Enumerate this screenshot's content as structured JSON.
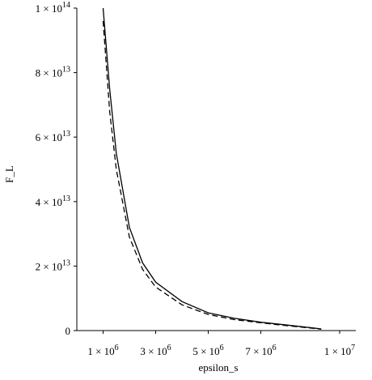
{
  "chart_data": {
    "type": "line",
    "x_label": "epsilon_s",
    "y_label": "F_L",
    "x": [
      1000000.0,
      1250000.0,
      1500000.0,
      2000000.0,
      2500000.0,
      3000000.0,
      4000000.0,
      5000000.0,
      6000000.0,
      7000000.0,
      8000000.0,
      9000000.0,
      9300000.0
    ],
    "series": [
      {
        "color": "#000000",
        "linestyle": "solid",
        "values": [
          100000000000000.0,
          75000000000000.0,
          55000000000000.0,
          32000000000000.0,
          21000000000000.0,
          15000000000000.0,
          9000000000000.0,
          5500000000000.0,
          3800000000000.0,
          2600000000000.0,
          1700000000000.0,
          800000000000.0,
          500000000000.0
        ]
      },
      {
        "color": "#000000",
        "linestyle": "dashed",
        "values": [
          96000000000000.0,
          68000000000000.0,
          50000000000000.0,
          29000000000000.0,
          19000000000000.0,
          13500000000000.0,
          8000000000000.0,
          5000000000000.0,
          3400000000000.0,
          2400000000000.0,
          1500000000000.0,
          700000000000.0,
          400000000000.0
        ]
      }
    ],
    "xlim": [
      0,
      10000000.0
    ],
    "ylim": [
      0,
      100000000000000.0
    ],
    "xticks": [
      {
        "value": 1000000.0,
        "label": "1 × 10^6"
      },
      {
        "value": 3000000.0,
        "label": "3 × 10^6"
      },
      {
        "value": 5000000.0,
        "label": "5 × 10^6"
      },
      {
        "value": 7000000.0,
        "label": "7 × 10^6"
      },
      {
        "value": 10000000.0,
        "label": "1 × 10^7"
      }
    ],
    "yticks": [
      0,
      {
        "value": 20000000000000.0,
        "label": "2 × 10^13"
      },
      {
        "value": 40000000000000.0,
        "label": "4 × 10^13"
      },
      {
        "value": 60000000000000.0,
        "label": "6 × 10^13"
      },
      {
        "value": 80000000000000.0,
        "label": "8 × 10^13"
      },
      {
        "value": 100000000000000.0,
        "label": "1 × 10^14"
      }
    ]
  }
}
